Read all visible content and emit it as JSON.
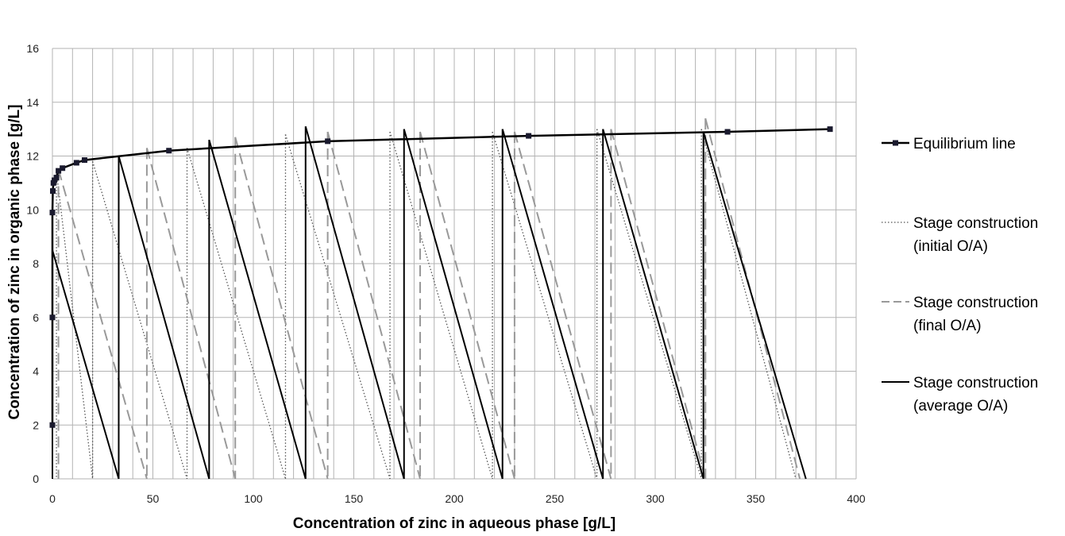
{
  "chart_data": {
    "type": "line",
    "title": "",
    "xlabel": "Concentration of zinc in aqueous phase [g/L]",
    "ylabel": "Concentration of zinc in organic phase [g/L]",
    "xlim": [
      0,
      400
    ],
    "ylim": [
      0,
      16
    ],
    "x_major_step": 50,
    "x_minor_step": 10,
    "y_major_step": 2,
    "grid": true,
    "legend_position": "right",
    "colors": {
      "equilibrium": "#000000",
      "initial": "#555555",
      "final": "#999999",
      "average": "#000000",
      "grid": "#b3b3b3"
    },
    "series": [
      {
        "name": "Equilibrium line",
        "style": "solid-markers",
        "points": [
          [
            0,
            2.0
          ],
          [
            0,
            6.0
          ],
          [
            0,
            9.9
          ],
          [
            0.2,
            10.7
          ],
          [
            0.5,
            11.0
          ],
          [
            1,
            11.1
          ],
          [
            2,
            11.2
          ],
          [
            3,
            11.45
          ],
          [
            5,
            11.55
          ],
          [
            12,
            11.75
          ],
          [
            16,
            11.85
          ],
          [
            58,
            12.2
          ],
          [
            137,
            12.55
          ],
          [
            237,
            12.75
          ],
          [
            336,
            12.9
          ],
          [
            387,
            13.0
          ]
        ]
      },
      {
        "name": "Stage construction (initial O/A)",
        "style": "dotted",
        "segments": [
          [
            [
              2,
              11.45
            ],
            [
              2,
              0
            ]
          ],
          [
            [
              2,
              11.45
            ],
            [
              20,
              0
            ]
          ],
          [
            [
              20,
              11.8
            ],
            [
              20,
              0
            ]
          ],
          [
            [
              20,
              11.8
            ],
            [
              67,
              0
            ]
          ],
          [
            [
              67,
              12.3
            ],
            [
              67,
              0
            ]
          ],
          [
            [
              67,
              12.3
            ],
            [
              116,
              0
            ]
          ],
          [
            [
              116,
              12.8
            ],
            [
              116,
              0
            ]
          ],
          [
            [
              116,
              12.8
            ],
            [
              168,
              0
            ]
          ],
          [
            [
              168,
              12.9
            ],
            [
              168,
              0
            ]
          ],
          [
            [
              168,
              12.9
            ],
            [
              219,
              0
            ]
          ],
          [
            [
              219,
              12.9
            ],
            [
              219,
              0
            ]
          ],
          [
            [
              219,
              12.9
            ],
            [
              271,
              0
            ]
          ],
          [
            [
              271,
              13.0
            ],
            [
              271,
              0
            ]
          ],
          [
            [
              271,
              13.0
            ],
            [
              323,
              0
            ]
          ],
          [
            [
              323,
              13.0
            ],
            [
              323,
              0
            ]
          ],
          [
            [
              323,
              13.0
            ],
            [
              370,
              0
            ]
          ]
        ]
      },
      {
        "name": "Stage construction (final O/A)",
        "style": "dashed",
        "segments": [
          [
            [
              3,
              11.5
            ],
            [
              3,
              0
            ]
          ],
          [
            [
              3,
              11.5
            ],
            [
              47,
              0
            ]
          ],
          [
            [
              47,
              12.3
            ],
            [
              47,
              0
            ]
          ],
          [
            [
              47,
              12.3
            ],
            [
              91,
              0
            ]
          ],
          [
            [
              91,
              12.7
            ],
            [
              91,
              0
            ]
          ],
          [
            [
              91,
              12.7
            ],
            [
              137,
              0
            ]
          ],
          [
            [
              137,
              12.9
            ],
            [
              137,
              0
            ]
          ],
          [
            [
              137,
              12.9
            ],
            [
              183,
              0
            ]
          ],
          [
            [
              183,
              12.9
            ],
            [
              183,
              0
            ]
          ],
          [
            [
              183,
              12.9
            ],
            [
              230,
              0
            ]
          ],
          [
            [
              230,
              12.9
            ],
            [
              230,
              0
            ]
          ],
          [
            [
              230,
              12.9
            ],
            [
              278,
              0
            ]
          ],
          [
            [
              278,
              13.0
            ],
            [
              278,
              0
            ]
          ],
          [
            [
              278,
              13.0
            ],
            [
              325,
              0
            ]
          ],
          [
            [
              325,
              13.4
            ],
            [
              325,
              0
            ]
          ],
          [
            [
              325,
              13.4
            ],
            [
              372,
              0
            ]
          ]
        ]
      },
      {
        "name": "Stage construction (average O/A)",
        "style": "solid",
        "segments": [
          [
            [
              0,
              8.5
            ],
            [
              0,
              0
            ]
          ],
          [
            [
              0,
              8.5
            ],
            [
              33,
              0
            ]
          ],
          [
            [
              33,
              12.0
            ],
            [
              33,
              0
            ]
          ],
          [
            [
              33,
              12.0
            ],
            [
              78,
              0
            ]
          ],
          [
            [
              78,
              12.6
            ],
            [
              78,
              0
            ]
          ],
          [
            [
              78,
              12.6
            ],
            [
              126,
              0
            ]
          ],
          [
            [
              126,
              13.1
            ],
            [
              126,
              0
            ]
          ],
          [
            [
              126,
              13.1
            ],
            [
              175,
              0
            ]
          ],
          [
            [
              175,
              13.0
            ],
            [
              175,
              0
            ]
          ],
          [
            [
              175,
              13.0
            ],
            [
              224,
              0
            ]
          ],
          [
            [
              224,
              13.0
            ],
            [
              224,
              0
            ]
          ],
          [
            [
              224,
              13.0
            ],
            [
              274,
              0
            ]
          ],
          [
            [
              274,
              13.0
            ],
            [
              274,
              0
            ]
          ],
          [
            [
              274,
              13.0
            ],
            [
              324,
              0
            ]
          ],
          [
            [
              324,
              12.9
            ],
            [
              324,
              0
            ]
          ],
          [
            [
              324,
              12.9
            ],
            [
              375,
              0
            ]
          ]
        ]
      }
    ],
    "legend": [
      {
        "lines": [
          "Equilibrium line"
        ]
      },
      {
        "lines": [
          "Stage construction",
          "(initial O/A)"
        ]
      },
      {
        "lines": [
          "Stage construction",
          "(final O/A)"
        ]
      },
      {
        "lines": [
          "Stage construction",
          "(average O/A)"
        ]
      }
    ]
  }
}
